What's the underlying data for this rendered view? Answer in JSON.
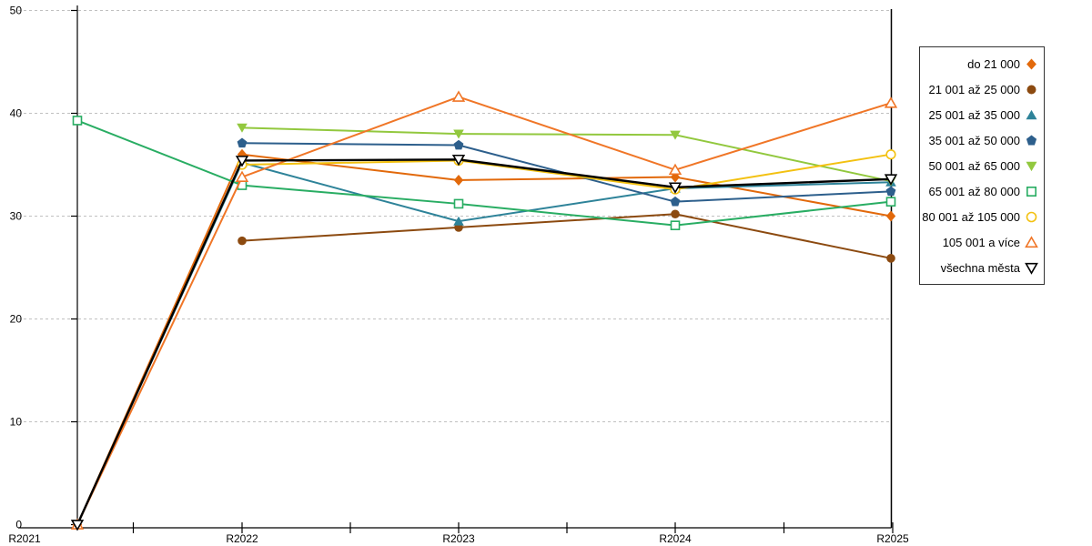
{
  "chart_data": {
    "type": "line",
    "categories": [
      "R2021",
      "R2022",
      "R2023",
      "R2024",
      "R2025"
    ],
    "xlabel": "",
    "ylabel": "",
    "ylim": [
      0,
      50
    ],
    "yticks": [
      0,
      10,
      20,
      30,
      40,
      50
    ],
    "grid": true,
    "grid_color": "#c0c0c0",
    "axis_color": "#000000",
    "legend_position": "right",
    "series": [
      {
        "name": "do 21 000",
        "marker": "diamond",
        "fill": "solid",
        "color": "#E2690B",
        "values": [
          0,
          36.0,
          33.5,
          33.8,
          30.0
        ]
      },
      {
        "name": "21 001 až 25 000",
        "marker": "circle",
        "fill": "solid",
        "color": "#8C4A10",
        "values": [
          null,
          27.6,
          28.9,
          30.2,
          25.9
        ]
      },
      {
        "name": "25 001 až 35 000",
        "marker": "triangle-up",
        "fill": "solid",
        "color": "#2E8399",
        "values": [
          0,
          35.2,
          29.5,
          32.7,
          33.3
        ]
      },
      {
        "name": "35 001 až 50 000",
        "marker": "pentagon",
        "fill": "solid",
        "color": "#2D5F8C",
        "values": [
          null,
          37.1,
          36.9,
          31.4,
          32.4
        ]
      },
      {
        "name": "50 001 až 65 000",
        "marker": "triangle-down",
        "fill": "solid",
        "color": "#92C83E",
        "values": [
          null,
          38.6,
          38.0,
          37.9,
          33.4
        ]
      },
      {
        "name": "65 001 až 80 000",
        "marker": "square",
        "fill": "open",
        "color": "#29AD63",
        "values": [
          39.3,
          33.0,
          31.2,
          29.1,
          31.4
        ]
      },
      {
        "name": "80 001 až 105 000",
        "marker": "circle",
        "fill": "open",
        "color": "#F3C111",
        "values": [
          null,
          35.0,
          35.4,
          32.6,
          36.0
        ]
      },
      {
        "name": "105 001 a více",
        "marker": "triangle-up",
        "fill": "open",
        "color": "#F07627",
        "values": [
          0,
          33.8,
          41.6,
          34.5,
          41.0
        ]
      },
      {
        "name": "všechna města",
        "marker": "triangle-down",
        "fill": "open",
        "color": "#000000",
        "values": [
          0,
          35.4,
          35.5,
          32.8,
          33.6
        ]
      }
    ]
  }
}
